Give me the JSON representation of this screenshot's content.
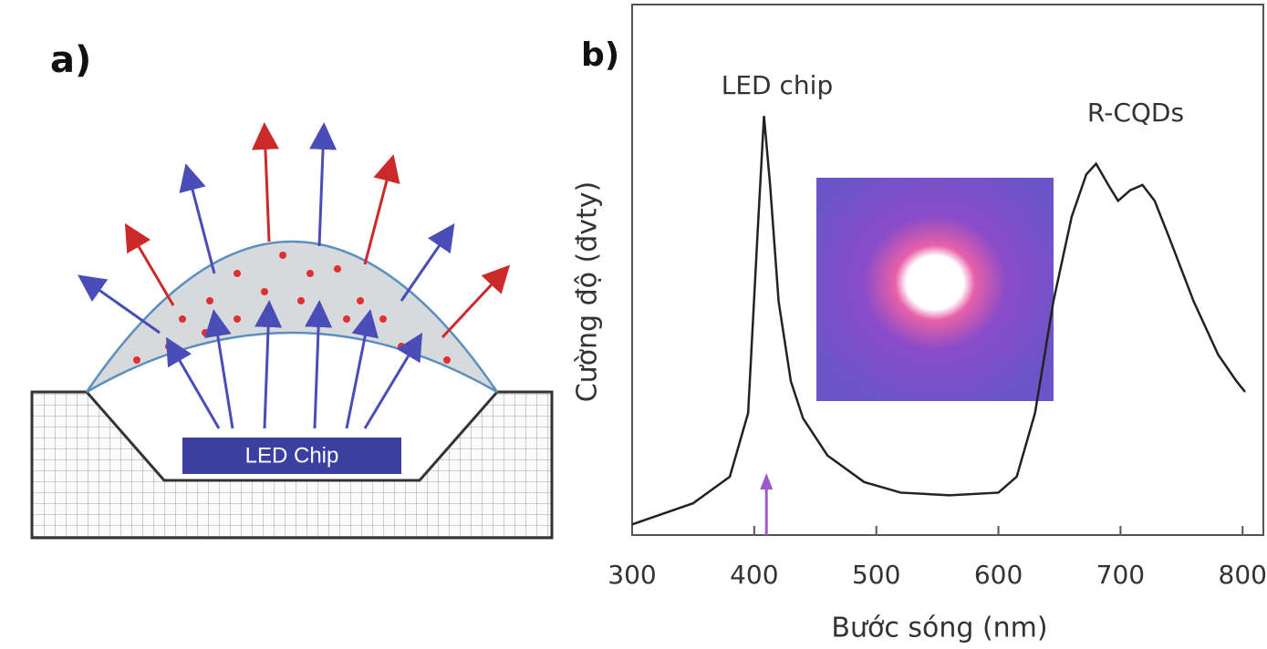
{
  "panel_a": {
    "label": "a)",
    "chip_label": "LED Chip"
  },
  "chart_data": {
    "type": "line",
    "panel_label": "b)",
    "x_label": "Bước sóng (nm)",
    "y_label": "Cường độ (đvty)",
    "annotations": [
      "LED chip",
      "R-CQDs"
    ],
    "x": [
      300,
      350,
      380,
      395,
      403,
      408,
      413,
      420,
      430,
      440,
      460,
      490,
      520,
      560,
      600,
      615,
      630,
      645,
      660,
      672,
      680,
      690,
      698,
      708,
      718,
      728,
      740,
      760,
      780,
      795,
      802
    ],
    "values": [
      0.02,
      0.06,
      0.11,
      0.23,
      0.58,
      0.79,
      0.66,
      0.44,
      0.29,
      0.22,
      0.15,
      0.1,
      0.08,
      0.075,
      0.08,
      0.11,
      0.23,
      0.44,
      0.6,
      0.68,
      0.7,
      0.66,
      0.63,
      0.65,
      0.66,
      0.63,
      0.56,
      0.44,
      0.34,
      0.29,
      0.27
    ],
    "color": "#222222",
    "arrow_x": 410,
    "arrow_color": "#9b59d0",
    "xlim": [
      300,
      817
    ],
    "ylim": [
      0,
      1
    ],
    "xticks": [
      300,
      400,
      500,
      600,
      700,
      800
    ]
  }
}
